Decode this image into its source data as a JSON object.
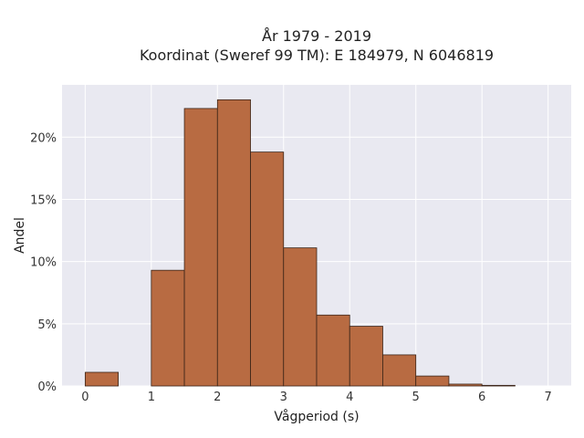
{
  "chart_data": {
    "type": "bar",
    "title_line1": "År 1979 - 2019",
    "title_line2": "Koordinat (Sweref 99 TM): E 184979, N 6046819",
    "xlabel": "Vågperiod (s)",
    "ylabel": "Andel",
    "xlim": [
      -0.35,
      7.35
    ],
    "ylim": [
      0,
      24.2
    ],
    "xticks": [
      "0",
      "1",
      "2",
      "3",
      "4",
      "5",
      "6",
      "7"
    ],
    "yticks": [
      "0%",
      "5%",
      "10%",
      "15%",
      "20%"
    ],
    "ytick_values": [
      0,
      5,
      10,
      15,
      20
    ],
    "bin_width": 0.5,
    "bins": [
      {
        "start": 0.0,
        "value": 1.1
      },
      {
        "start": 0.5,
        "value": 0.0
      },
      {
        "start": 1.0,
        "value": 9.3
      },
      {
        "start": 1.5,
        "value": 22.3
      },
      {
        "start": 2.0,
        "value": 23.0
      },
      {
        "start": 2.5,
        "value": 18.8
      },
      {
        "start": 3.0,
        "value": 11.1
      },
      {
        "start": 3.5,
        "value": 5.7
      },
      {
        "start": 4.0,
        "value": 4.8
      },
      {
        "start": 4.5,
        "value": 2.5
      },
      {
        "start": 5.0,
        "value": 0.8
      },
      {
        "start": 5.5,
        "value": 0.15
      },
      {
        "start": 6.0,
        "value": 0.05
      },
      {
        "start": 6.5,
        "value": 0.0
      }
    ],
    "grid": true,
    "bar_color": "#b86b42",
    "bar_edge_color": "#3b2418",
    "plot_bg": "#e9e9f1"
  }
}
